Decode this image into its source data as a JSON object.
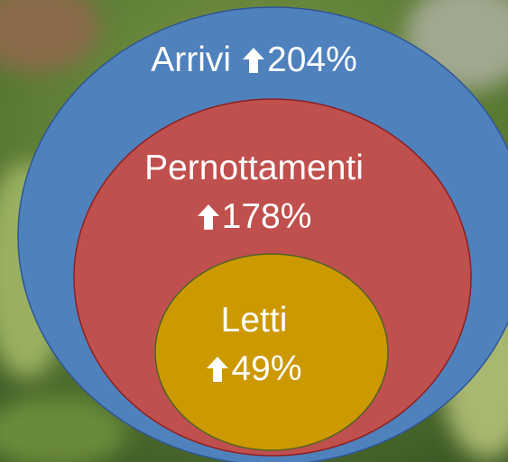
{
  "nodes": [
    {
      "label": "Arrivi",
      "change": "204%"
    },
    {
      "label": "Pernottamenti",
      "change": "178%"
    },
    {
      "label": "Letti",
      "change": "49%"
    }
  ]
}
